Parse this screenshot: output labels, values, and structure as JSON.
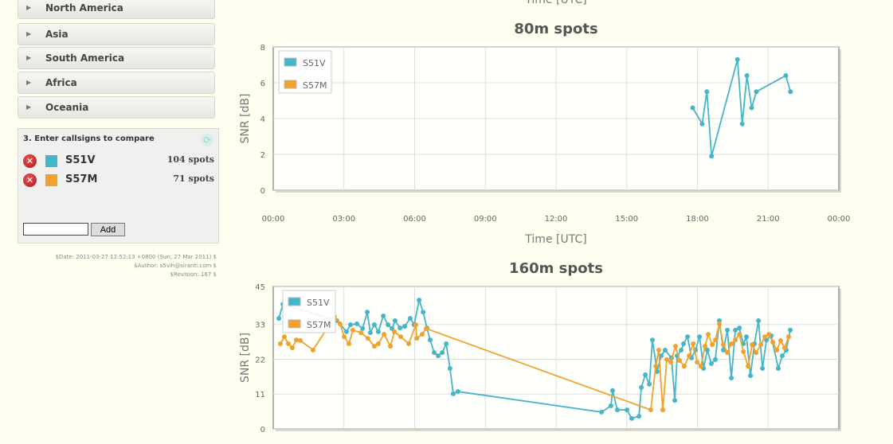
{
  "regions": [
    "North America",
    "Asia",
    "South America",
    "Africa",
    "Oceania"
  ],
  "compare": {
    "title": "3. Enter callsigns to compare",
    "callsigns": [
      {
        "call": "S51V",
        "spots": "104 spots",
        "color": "#45b5c8"
      },
      {
        "call": "S57M",
        "spots": "71 spots",
        "color": "#f0a22c"
      }
    ],
    "input_value": "",
    "add_label": "Add"
  },
  "footer": [
    "$Date: 2011-03-27 12:52:13 +0800 (Sun, 27 Mar 2011) $",
    "$Author: s5vih@siranti.com $",
    "$Revision: 167 $"
  ],
  "top_axis_label": "Time [UTC]",
  "chart_data": [
    {
      "type": "line",
      "title": "80m spots",
      "xlabel": "Time [UTC]",
      "ylabel": "SNR [dB]",
      "xlim": [
        0,
        24
      ],
      "ylim": [
        0,
        8
      ],
      "yticks": [
        0,
        2,
        4,
        6,
        8
      ],
      "xticks": [
        "00:00",
        "03:00",
        "06:00",
        "09:00",
        "12:00",
        "15:00",
        "18:00",
        "21:00",
        "00:00"
      ],
      "legend": "top-left",
      "series": [
        {
          "name": "S51V",
          "color": "#45b5c8",
          "points": [
            [
              17.8,
              4.6
            ],
            [
              18.2,
              3.7
            ],
            [
              18.4,
              5.5
            ],
            [
              18.6,
              1.9
            ],
            [
              19.7,
              7.3
            ],
            [
              19.9,
              3.7
            ],
            [
              20.1,
              6.4
            ],
            [
              20.3,
              4.6
            ],
            [
              20.5,
              5.5
            ],
            [
              21.75,
              6.4
            ],
            [
              21.95,
              5.5
            ]
          ]
        },
        {
          "name": "S57M",
          "color": "#f0a22c",
          "points": []
        }
      ]
    },
    {
      "type": "line",
      "title": "160m spots",
      "xlabel": "Time [UTC]",
      "ylabel": "SNR [dB]",
      "xlim": [
        0,
        24
      ],
      "ylim": [
        0,
        45
      ],
      "yticks": [
        0,
        11,
        22,
        33,
        45
      ],
      "legend": "top-left",
      "series": [
        {
          "name": "S51V",
          "color": "#45b5c8",
          "points": [
            [
              0.24,
              34.9
            ],
            [
              0.41,
              39.4
            ],
            [
              2.7,
              34.2
            ],
            [
              3.11,
              30.7
            ],
            [
              3.28,
              32.9
            ],
            [
              3.55,
              33.2
            ],
            [
              3.79,
              31.7
            ],
            [
              3.99,
              36.9
            ],
            [
              4.12,
              30.4
            ],
            [
              4.29,
              32.9
            ],
            [
              4.46,
              30.7
            ],
            [
              4.67,
              35.7
            ],
            [
              4.87,
              32.9
            ],
            [
              5.04,
              31.7
            ],
            [
              5.17,
              34.2
            ],
            [
              5.38,
              31.9
            ],
            [
              5.58,
              32.4
            ],
            [
              5.81,
              34.9
            ],
            [
              5.98,
              32.9
            ],
            [
              6.19,
              40.7
            ],
            [
              6.36,
              36.9
            ],
            [
              6.52,
              31.9
            ],
            [
              6.66,
              28.1
            ],
            [
              6.83,
              24.1
            ],
            [
              7.0,
              23.1
            ],
            [
              7.17,
              24.1
            ],
            [
              7.34,
              26.9
            ],
            [
              7.5,
              19.1
            ],
            [
              7.64,
              11.1
            ],
            [
              7.84,
              11.8
            ],
            [
              13.93,
              5.3
            ],
            [
              14.33,
              7.3
            ],
            [
              14.4,
              12.1
            ],
            [
              14.6,
              6.0
            ],
            [
              15.01,
              6.0
            ],
            [
              15.21,
              3.3
            ],
            [
              15.52,
              4.0
            ],
            [
              15.62,
              13.1
            ],
            [
              15.79,
              17.1
            ],
            [
              15.96,
              14.1
            ],
            [
              16.09,
              28.1
            ],
            [
              16.29,
              18.1
            ],
            [
              16.46,
              23.1
            ],
            [
              16.63,
              24.9
            ],
            [
              16.9,
              22.4
            ],
            [
              17.04,
              9.0
            ],
            [
              17.14,
              23.1
            ],
            [
              17.31,
              24.9
            ],
            [
              17.41,
              26.9
            ],
            [
              17.58,
              29.1
            ],
            [
              17.75,
              22.4
            ],
            [
              17.92,
              24.9
            ],
            [
              18.09,
              29.1
            ],
            [
              18.26,
              19.1
            ],
            [
              18.42,
              24.9
            ],
            [
              18.59,
              20.6
            ],
            [
              18.76,
              21.9
            ],
            [
              18.93,
              34.2
            ],
            [
              19.1,
              24.9
            ],
            [
              19.27,
              31.2
            ],
            [
              19.44,
              16.1
            ],
            [
              19.61,
              31.2
            ],
            [
              19.78,
              31.9
            ],
            [
              19.95,
              26.9
            ],
            [
              20.08,
              29.1
            ],
            [
              20.25,
              16.8
            ],
            [
              20.42,
              26.9
            ],
            [
              20.59,
              34.2
            ],
            [
              20.76,
              19.1
            ],
            [
              20.93,
              28.1
            ],
            [
              21.13,
              29.4
            ],
            [
              21.43,
              19.1
            ],
            [
              21.6,
              23.1
            ],
            [
              21.77,
              24.9
            ],
            [
              21.94,
              31.2
            ]
          ]
        },
        {
          "name": "S57M",
          "color": "#f0a22c",
          "points": [
            [
              0.3,
              26.9
            ],
            [
              0.47,
              29.1
            ],
            [
              0.64,
              26.9
            ],
            [
              0.81,
              25.6
            ],
            [
              0.98,
              28.1
            ],
            [
              1.15,
              27.9
            ],
            [
              1.69,
              24.9
            ],
            [
              2.6,
              35.4
            ],
            [
              2.84,
              33.2
            ],
            [
              3.01,
              29.1
            ],
            [
              3.21,
              26.9
            ],
            [
              3.38,
              31.2
            ],
            [
              3.72,
              30.4
            ],
            [
              4.02,
              28.6
            ],
            [
              4.29,
              26.1
            ],
            [
              4.46,
              26.9
            ],
            [
              4.7,
              29.9
            ],
            [
              4.97,
              26.1
            ],
            [
              5.14,
              30.7
            ],
            [
              5.41,
              29.1
            ],
            [
              5.75,
              26.9
            ],
            [
              6.05,
              32.9
            ],
            [
              6.09,
              28.6
            ],
            [
              6.32,
              29.9
            ],
            [
              6.49,
              31.7
            ],
            [
              16.02,
              6.0
            ],
            [
              16.23,
              19.8
            ],
            [
              16.36,
              24.9
            ],
            [
              16.53,
              6.0
            ],
            [
              16.7,
              21.9
            ],
            [
              16.87,
              21.1
            ],
            [
              17.07,
              26.1
            ],
            [
              17.24,
              21.6
            ],
            [
              17.44,
              19.8
            ],
            [
              17.65,
              23.1
            ],
            [
              17.82,
              26.9
            ],
            [
              17.99,
              21.1
            ],
            [
              18.15,
              19.8
            ],
            [
              18.32,
              26.1
            ],
            [
              18.46,
              29.9
            ],
            [
              18.63,
              26.6
            ],
            [
              18.76,
              28.1
            ],
            [
              18.93,
              33.2
            ],
            [
              19.1,
              26.6
            ],
            [
              19.27,
              24.1
            ],
            [
              19.44,
              26.9
            ],
            [
              19.61,
              28.1
            ],
            [
              19.78,
              29.9
            ],
            [
              19.95,
              24.4
            ],
            [
              20.15,
              19.8
            ],
            [
              20.32,
              26.6
            ],
            [
              20.49,
              24.1
            ],
            [
              20.69,
              26.6
            ],
            [
              20.86,
              29.1
            ],
            [
              21.03,
              29.9
            ],
            [
              21.2,
              27.4
            ],
            [
              21.37,
              24.9
            ],
            [
              21.53,
              27.9
            ],
            [
              21.7,
              25.6
            ],
            [
              21.87,
              29.1
            ]
          ]
        }
      ]
    }
  ]
}
